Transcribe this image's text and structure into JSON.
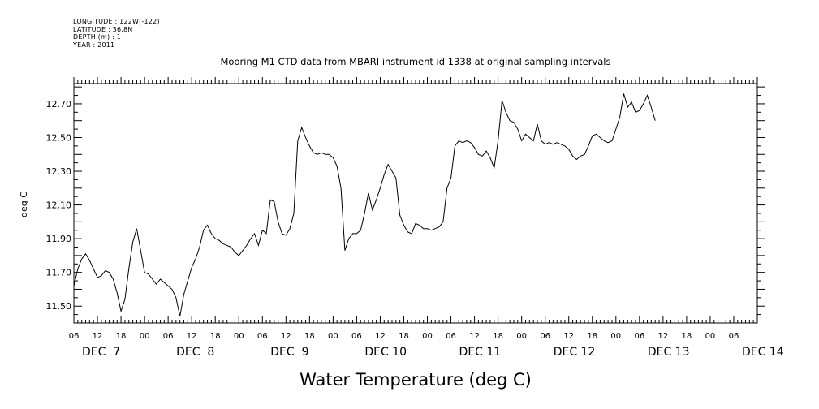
{
  "header": {
    "lines": [
      "LONGITUDE : 122W(-122)",
      "LATITUDE : 36.8N",
      "DEPTH (m) : 1",
      "YEAR : 2011"
    ]
  },
  "chart_data": {
    "type": "line",
    "title": "Mooring M1 CTD data from MBARI instrument id 1338 at original sampling intervals",
    "xlabel": "Water Temperature (deg C)",
    "ylabel": "deg C",
    "ylim": [
      11.4,
      12.82
    ],
    "yticks": [
      "11.50",
      "11.70",
      "11.90",
      "12.10",
      "12.30",
      "12.50",
      "12.70"
    ],
    "xlim": [
      0,
      174
    ],
    "x_unit": "hours after 06:00 DEC 7, 2011",
    "x_hour_labels": [
      "06",
      "12",
      "18",
      "00",
      "06",
      "12",
      "18",
      "00",
      "06",
      "12",
      "18",
      "00",
      "06",
      "12",
      "18",
      "00",
      "06",
      "12",
      "18",
      "00",
      "06",
      "12",
      "18",
      "00",
      "06",
      "12",
      "18",
      "00",
      "06"
    ],
    "day_labels": [
      {
        "text": "DEC  7",
        "x": 0
      },
      {
        "text": "DEC  8",
        "x": 24
      },
      {
        "text": "DEC  9",
        "x": 48
      },
      {
        "text": "DEC 10",
        "x": 72
      },
      {
        "text": "DEC 11",
        "x": 96
      },
      {
        "text": "DEC 12",
        "x": 120
      },
      {
        "text": "DEC 13",
        "x": 144
      },
      {
        "text": "DEC 14",
        "x": 168
      }
    ],
    "series": [
      {
        "points": [
          [
            0,
            11.62
          ],
          [
            1,
            11.72
          ],
          [
            2,
            11.78
          ],
          [
            3,
            11.81
          ],
          [
            4,
            11.77
          ],
          [
            5,
            11.72
          ],
          [
            6,
            11.67
          ],
          [
            7,
            11.68
          ],
          [
            8,
            11.71
          ],
          [
            9,
            11.7
          ],
          [
            10,
            11.66
          ],
          [
            11,
            11.58
          ],
          [
            12,
            11.47
          ],
          [
            13,
            11.54
          ],
          [
            14,
            11.72
          ],
          [
            15,
            11.88
          ],
          [
            16,
            11.96
          ],
          [
            17,
            11.83
          ],
          [
            18,
            11.7
          ],
          [
            19,
            11.69
          ],
          [
            20,
            11.66
          ],
          [
            21,
            11.63
          ],
          [
            22,
            11.66
          ],
          [
            23,
            11.64
          ],
          [
            24,
            11.62
          ],
          [
            25,
            11.6
          ],
          [
            26,
            11.55
          ],
          [
            27,
            11.44
          ],
          [
            28,
            11.57
          ],
          [
            29,
            11.65
          ],
          [
            30,
            11.73
          ],
          [
            31,
            11.78
          ],
          [
            32,
            11.85
          ],
          [
            33,
            11.95
          ],
          [
            34,
            11.98
          ],
          [
            35,
            11.93
          ],
          [
            36,
            11.9
          ],
          [
            37,
            11.89
          ],
          [
            38,
            11.87
          ],
          [
            39,
            11.86
          ],
          [
            40,
            11.85
          ],
          [
            41,
            11.82
          ],
          [
            42,
            11.8
          ],
          [
            43,
            11.83
          ],
          [
            44,
            11.86
          ],
          [
            45,
            11.9
          ],
          [
            46,
            11.93
          ],
          [
            47,
            11.86
          ],
          [
            48,
            11.95
          ],
          [
            49,
            11.93
          ],
          [
            50,
            12.13
          ],
          [
            51,
            12.12
          ],
          [
            52,
            12.0
          ],
          [
            53,
            11.93
          ],
          [
            54,
            11.92
          ],
          [
            55,
            11.96
          ],
          [
            56,
            12.05
          ],
          [
            57,
            12.48
          ],
          [
            58,
            12.56
          ],
          [
            59,
            12.5
          ],
          [
            60,
            12.45
          ],
          [
            61,
            12.41
          ],
          [
            62,
            12.4
          ],
          [
            63,
            12.41
          ],
          [
            64,
            12.4
          ],
          [
            65,
            12.4
          ],
          [
            66,
            12.38
          ],
          [
            67,
            12.33
          ],
          [
            68,
            12.2
          ],
          [
            69,
            11.83
          ],
          [
            70,
            11.9
          ],
          [
            71,
            11.93
          ],
          [
            72,
            11.93
          ],
          [
            73,
            11.95
          ],
          [
            74,
            12.05
          ],
          [
            75,
            12.17
          ],
          [
            76,
            12.07
          ],
          [
            77,
            12.13
          ],
          [
            78,
            12.2
          ],
          [
            79,
            12.28
          ],
          [
            80,
            12.34
          ],
          [
            81,
            12.3
          ],
          [
            82,
            12.26
          ],
          [
            83,
            12.04
          ],
          [
            84,
            11.98
          ],
          [
            85,
            11.94
          ],
          [
            86,
            11.93
          ],
          [
            87,
            11.99
          ],
          [
            88,
            11.98
          ],
          [
            89,
            11.96
          ],
          [
            90,
            11.96
          ],
          [
            91,
            11.95
          ],
          [
            92,
            11.96
          ],
          [
            93,
            11.97
          ],
          [
            94,
            12.0
          ],
          [
            95,
            12.2
          ],
          [
            96,
            12.26
          ],
          [
            97,
            12.45
          ],
          [
            98,
            12.48
          ],
          [
            99,
            12.47
          ],
          [
            100,
            12.48
          ],
          [
            101,
            12.47
          ],
          [
            102,
            12.44
          ],
          [
            103,
            12.4
          ],
          [
            104,
            12.39
          ],
          [
            105,
            12.42
          ],
          [
            106,
            12.38
          ],
          [
            107,
            12.32
          ],
          [
            108,
            12.48
          ],
          [
            109,
            12.72
          ],
          [
            110,
            12.65
          ],
          [
            111,
            12.6
          ],
          [
            112,
            12.59
          ],
          [
            113,
            12.55
          ],
          [
            114,
            12.48
          ],
          [
            115,
            12.52
          ],
          [
            116,
            12.5
          ],
          [
            117,
            12.48
          ],
          [
            118,
            12.58
          ],
          [
            119,
            12.48
          ],
          [
            120,
            12.46
          ],
          [
            121,
            12.47
          ],
          [
            122,
            12.46
          ],
          [
            123,
            12.47
          ],
          [
            124,
            12.46
          ],
          [
            125,
            12.45
          ],
          [
            126,
            12.43
          ],
          [
            127,
            12.39
          ],
          [
            128,
            12.37
          ],
          [
            129,
            12.39
          ],
          [
            130,
            12.4
          ],
          [
            131,
            12.45
          ],
          [
            132,
            12.51
          ],
          [
            133,
            12.52
          ],
          [
            134,
            12.5
          ],
          [
            135,
            12.48
          ],
          [
            136,
            12.47
          ],
          [
            137,
            12.48
          ],
          [
            138,
            12.55
          ],
          [
            139,
            12.62
          ],
          [
            140,
            12.76
          ],
          [
            141,
            12.68
          ],
          [
            142,
            12.71
          ],
          [
            143,
            12.65
          ],
          [
            144,
            12.66
          ],
          [
            145,
            12.7
          ],
          [
            146,
            12.75
          ],
          [
            147,
            12.68
          ],
          [
            148,
            12.6
          ]
        ]
      }
    ]
  }
}
